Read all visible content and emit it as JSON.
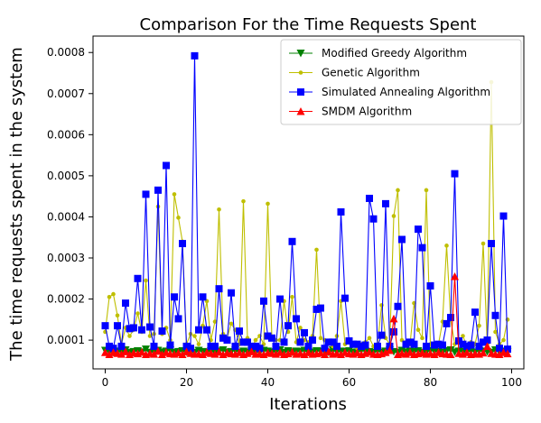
{
  "chart_data": {
    "type": "line",
    "title": "Comparison For the Time Requests Spent",
    "xlabel": "Iterations",
    "ylabel": "The time requests spent in the system",
    "xlim": [
      -3,
      103
    ],
    "ylim": [
      3e-05,
      0.00084
    ],
    "xticks": [
      0,
      20,
      40,
      60,
      80,
      100
    ],
    "yticks": [
      0.0001,
      0.0002,
      0.0003,
      0.0004,
      0.0005,
      0.0006,
      0.0007,
      0.0008
    ],
    "ytick_labels": [
      "0.0001",
      "0.0002",
      "0.0003",
      "0.0004",
      "0.0005",
      "0.0006",
      "0.0007",
      "0.0008"
    ],
    "legend_position": "top-right",
    "x": [
      0,
      1,
      2,
      3,
      4,
      5,
      6,
      7,
      8,
      9,
      10,
      11,
      12,
      13,
      14,
      15,
      16,
      17,
      18,
      19,
      20,
      21,
      22,
      23,
      24,
      25,
      26,
      27,
      28,
      29,
      30,
      31,
      32,
      33,
      34,
      35,
      36,
      37,
      38,
      39,
      40,
      41,
      42,
      43,
      44,
      45,
      46,
      47,
      48,
      49,
      50,
      51,
      52,
      53,
      54,
      55,
      56,
      57,
      58,
      59,
      60,
      61,
      62,
      63,
      64,
      65,
      66,
      67,
      68,
      69,
      70,
      71,
      72,
      73,
      74,
      75,
      76,
      77,
      78,
      79,
      80,
      81,
      82,
      83,
      84,
      85,
      86,
      87,
      88,
      89,
      90,
      91,
      92,
      93,
      94,
      95,
      96,
      97,
      98,
      99
    ],
    "series": [
      {
        "name": "Modified Greedy Algorithm",
        "color": "#008000",
        "marker": "triangle-down",
        "values": [
          7.5e-05,
          7.2e-05,
          7e-05,
          7.3e-05,
          7.1e-05,
          7.6e-05,
          7e-05,
          7.2e-05,
          7.4e-05,
          7.1e-05,
          7.8e-05,
          7e-05,
          7.2e-05,
          7.5e-05,
          7.1e-05,
          7.3e-05,
          7.6e-05,
          7e-05,
          7.2e-05,
          7.4e-05,
          7.1e-05,
          7.3e-05,
          7e-05,
          7.5e-05,
          7.2e-05,
          7.1e-05,
          7.4e-05,
          7e-05,
          7.3e-05,
          7.6e-05,
          7.1e-05,
          7.2e-05,
          7.5e-05,
          7e-05,
          7.3e-05,
          7.1e-05,
          7.4e-05,
          7.2e-05,
          7e-05,
          7.5e-05,
          7.3e-05,
          7.1e-05,
          7.2e-05,
          7.6e-05,
          7e-05,
          7.4e-05,
          7.1e-05,
          7.3e-05,
          7.2e-05,
          7.5e-05,
          7e-05,
          7.1e-05,
          7.4e-05,
          7.3e-05,
          7.2e-05,
          7e-05,
          7.6e-05,
          7.1e-05,
          7.3e-05,
          7.2e-05,
          7.4e-05,
          7e-05,
          7.1e-05,
          7.5e-05,
          7.3e-05,
          7.2e-05,
          7e-05,
          7.4e-05,
          7.1e-05,
          7.3e-05,
          7.6e-05,
          7.2e-05,
          7e-05,
          7.5e-05,
          7.1e-05,
          7.3e-05,
          7.2e-05,
          7.4e-05,
          7e-05,
          7.1e-05,
          7.5e-05,
          7.3e-05,
          7.2e-05,
          7e-05,
          7.4e-05,
          7.6e-05,
          7.1e-05,
          7.3e-05,
          7.2e-05,
          7e-05,
          7.5e-05,
          7.1e-05,
          7.4e-05,
          7.3e-05,
          7.2e-05,
          7e-05,
          7.6e-05,
          7.1e-05,
          7.3e-05,
          7.2e-05
        ]
      },
      {
        "name": "Genetic Algorithm",
        "color": "#bfbf00",
        "marker": "dot",
        "values": [
          0.00012,
          0.000205,
          0.000212,
          0.00016,
          9e-05,
          0.00013,
          0.00011,
          0.000125,
          0.000165,
          0.00012,
          0.000245,
          0.00011,
          0.000115,
          0.000425,
          0.000115,
          0.00013,
          0.0001,
          0.000455,
          0.000398,
          0.00034,
          9e-05,
          0.000115,
          0.00011,
          9e-05,
          0.000135,
          0.000195,
          0.0001,
          0.000145,
          0.000418,
          0.000115,
          0.000105,
          0.00014,
          0.000125,
          9e-05,
          0.000438,
          0.000105,
          8e-05,
          0.0001,
          0.00011,
          9e-05,
          0.000432,
          0.000105,
          0.0001,
          0.0001,
          0.000195,
          0.00012,
          0.000205,
          9.5e-05,
          0.00013,
          0.0001,
          9.5e-05,
          0.00011,
          0.00032,
          0.000105,
          0.0001,
          9.5e-05,
          8.5e-05,
          0.00011,
          0.000195,
          9e-05,
          0.0001,
          9e-05,
          8e-05,
          9e-05,
          9.5e-05,
          0.000105,
          8.5e-05,
          9e-05,
          0.000185,
          0.000105,
          9e-05,
          0.000402,
          0.000465,
          0.0001,
          9.5e-05,
          9e-05,
          0.00019,
          0.000125,
          0.000105,
          0.000465,
          9e-05,
          8.5e-05,
          9e-05,
          0.000145,
          0.00033,
          0.00015,
          9e-05,
          9.5e-05,
          0.00011,
          8.5e-05,
          9.5e-05,
          9e-05,
          0.000135,
          0.000335,
          9e-05,
          0.000728,
          0.00012,
          9e-05,
          0.0001,
          0.00015
        ]
      },
      {
        "name": "Simulated Annealing Algorithm",
        "color": "#0000ff",
        "marker": "square",
        "values": [
          0.000135,
          8.5e-05,
          8e-05,
          0.000135,
          8.5e-05,
          0.00019,
          0.000128,
          0.00013,
          0.00025,
          0.000125,
          0.000455,
          0.000132,
          8.5e-05,
          0.000465,
          0.000122,
          0.000525,
          8.8e-05,
          0.000205,
          0.000152,
          0.000335,
          8.5e-05,
          8e-05,
          0.000792,
          0.000125,
          0.000205,
          0.000125,
          8.5e-05,
          8.5e-05,
          0.000225,
          0.000105,
          0.0001,
          0.000215,
          8.5e-05,
          0.000122,
          9.5e-05,
          9.5e-05,
          8.5e-05,
          8.5e-05,
          8e-05,
          0.000195,
          0.00011,
          0.000105,
          8.5e-05,
          0.0002,
          9.5e-05,
          0.000135,
          0.00034,
          0.000152,
          9.5e-05,
          0.000118,
          8.5e-05,
          0.0001,
          0.000175,
          0.000178,
          8e-05,
          9.5e-05,
          9.5e-05,
          8.5e-05,
          0.000412,
          0.000202,
          9.8e-05,
          9e-05,
          9e-05,
          8.5e-05,
          8.8e-05,
          0.000445,
          0.000395,
          8.5e-05,
          0.000112,
          0.000432,
          8.5e-05,
          0.00012,
          0.000182,
          0.000345,
          9e-05,
          9.5e-05,
          9e-05,
          0.00037,
          0.000325,
          8.5e-05,
          0.000232,
          8.8e-05,
          9e-05,
          8.8e-05,
          0.00014,
          0.000155,
          0.000505,
          9.8e-05,
          9e-05,
          8.5e-05,
          8.8e-05,
          0.000168,
          8.5e-05,
          9.5e-05,
          0.0001,
          0.000335,
          0.00016,
          8e-05,
          0.000402,
          7.8e-05
        ]
      },
      {
        "name": "SMDM Algorithm",
        "color": "#ff0000",
        "marker": "triangle-up",
        "values": [
          7e-05,
          6.5e-05,
          7e-05,
          6.8e-05,
          6.6e-05,
          7.2e-05,
          6.5e-05,
          6.9e-05,
          6.7e-05,
          7.1e-05,
          6.5e-05,
          6.8e-05,
          6.6e-05,
          7.3e-05,
          6.5e-05,
          7e-05,
          6.7e-05,
          6.6e-05,
          6.9e-05,
          6.5e-05,
          7.2e-05,
          6.8e-05,
          6.6e-05,
          6.7e-05,
          6.5e-05,
          7e-05,
          6.8e-05,
          6.6e-05,
          7.1e-05,
          6.5e-05,
          6.9e-05,
          6.7e-05,
          6.6e-05,
          7e-05,
          6.5e-05,
          6.8e-05,
          7.2e-05,
          6.6e-05,
          6.7e-05,
          6.5e-05,
          6.9e-05,
          6.8e-05,
          6.6e-05,
          7e-05,
          6.5e-05,
          6.7e-05,
          7.1e-05,
          6.6e-05,
          6.8e-05,
          6.5e-05,
          7e-05,
          6.6e-05,
          6.7e-05,
          6.9e-05,
          6.5e-05,
          7.2e-05,
          6.6e-05,
          6.8e-05,
          6.5e-05,
          7e-05,
          6.7e-05,
          6.6e-05,
          6.9e-05,
          6.5e-05,
          6.8e-05,
          7.1e-05,
          6.6e-05,
          6.5e-05,
          6.7e-05,
          7e-05,
          7.5e-05,
          0.000152,
          6.5e-05,
          6.8e-05,
          6.6e-05,
          7e-05,
          6.5e-05,
          6.7e-05,
          6.9e-05,
          6.6e-05,
          6.8e-05,
          6.5e-05,
          7e-05,
          6.7e-05,
          6.6e-05,
          6.5e-05,
          0.000255,
          6.8e-05,
          6.6e-05,
          7e-05,
          6.5e-05,
          6.7e-05,
          6.6e-05,
          6.9e-05,
          8.5e-05,
          6.8e-05,
          6.6e-05,
          6.5e-05,
          7e-05,
          6.7e-05
        ]
      }
    ]
  }
}
